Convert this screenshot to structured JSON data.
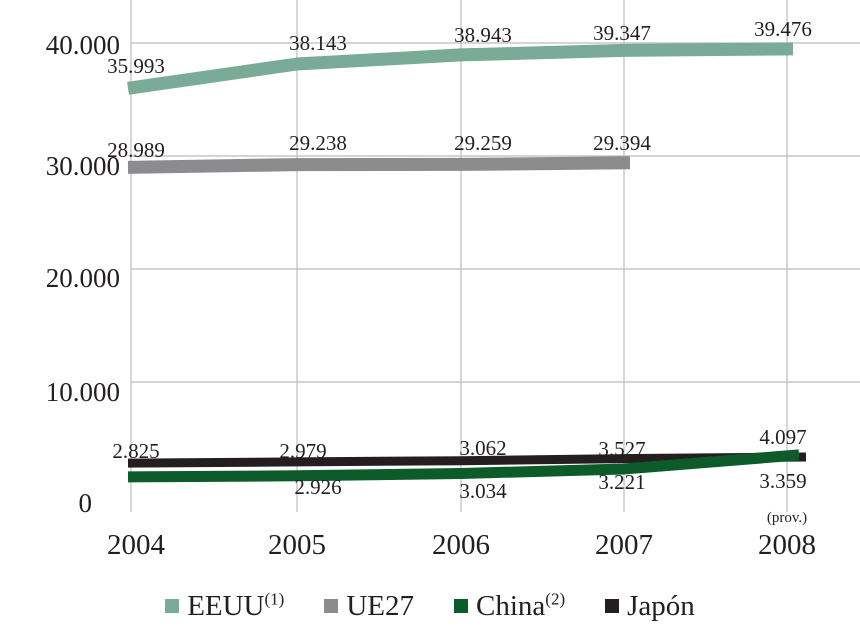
{
  "chart_data": {
    "type": "line",
    "categories": [
      "2004",
      "2005",
      "2006",
      "2007",
      "2008"
    ],
    "category_note": {
      "index": 4,
      "text": "(prov.)"
    },
    "y_ticks": [
      "0",
      "10.000",
      "20.000",
      "30.000",
      "40.000"
    ],
    "ylim": [
      0,
      40000
    ],
    "grid": true,
    "legend_position": "bottom",
    "series": [
      {
        "name": "EEUU",
        "sup": "(1)",
        "color": "#7aab98",
        "values": [
          35993,
          38143,
          38943,
          39347,
          39476
        ],
        "labels": [
          "35.993",
          "38.143",
          "38.943",
          "39.347",
          "39.476"
        ]
      },
      {
        "name": "UE27",
        "sup": "",
        "color": "#8c8c8e",
        "values": [
          28989,
          29238,
          29259,
          29394,
          null
        ],
        "labels": [
          "28.989",
          "29.238",
          "29.259",
          "29.394",
          ""
        ]
      },
      {
        "name": "China",
        "sup": "(2)",
        "color": "#0d5a2a",
        "values": [
          1600,
          1700,
          1900,
          2300,
          3550
        ],
        "labels": [
          "",
          "",
          "",
          "",
          ""
        ]
      },
      {
        "name": "Japón",
        "sup": "",
        "color": "#231f20",
        "values": [
          2825,
          2926,
          3034,
          3221,
          3359
        ],
        "labels": [
          "2.825",
          "2.926",
          "3.034",
          "3.221",
          "3.359"
        ]
      }
    ],
    "extra_labels": [
      "2.979",
      "3.062",
      "3.527",
      "4.097"
    ]
  }
}
